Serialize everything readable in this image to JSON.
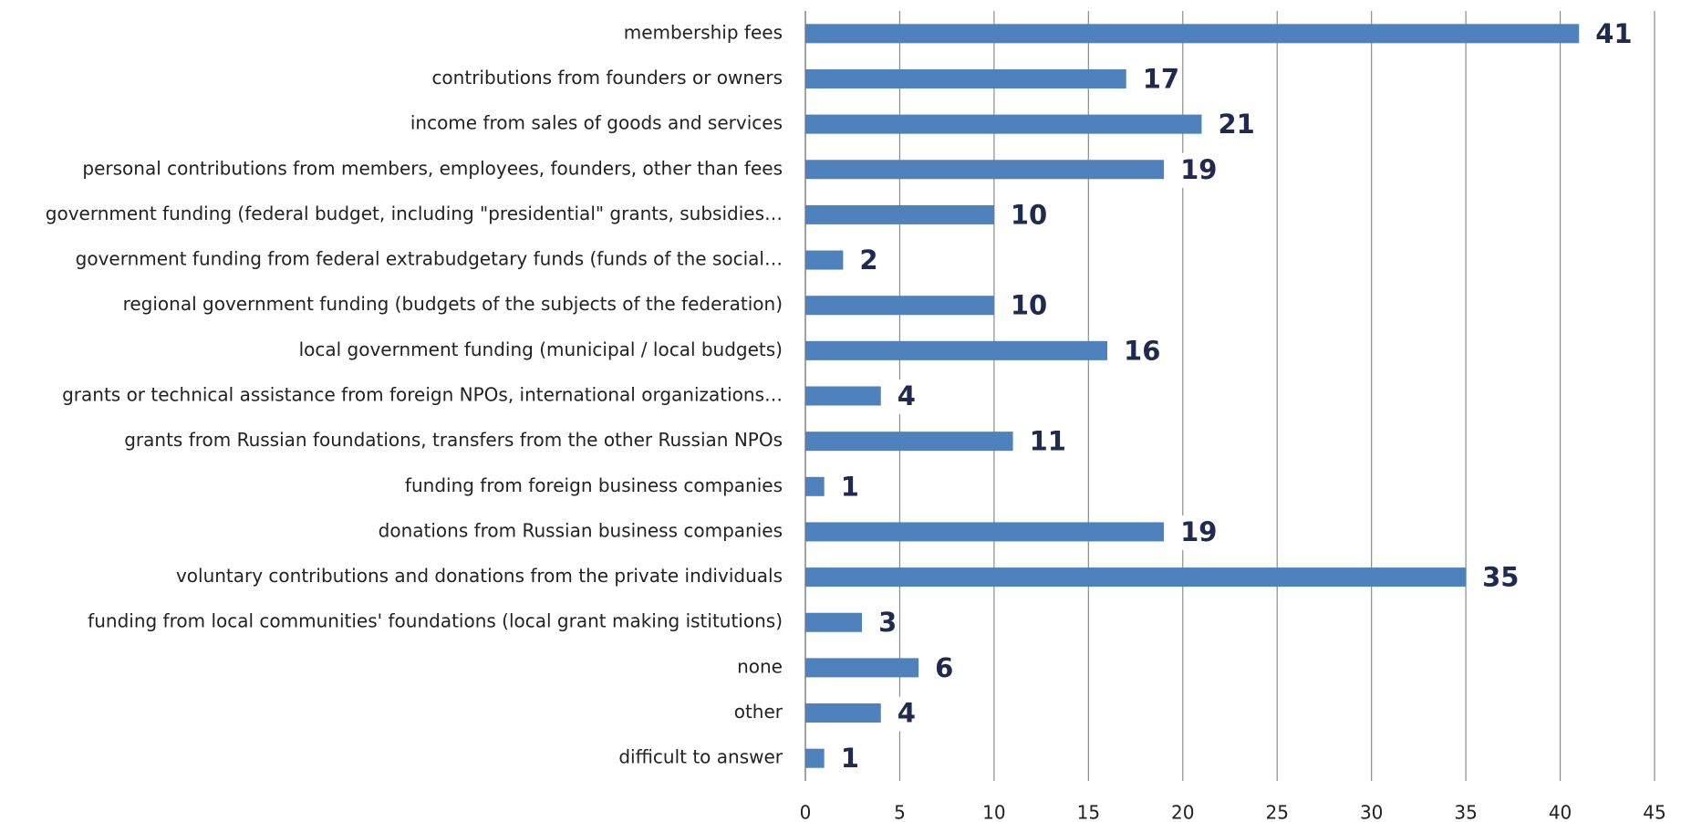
{
  "chart_data": {
    "type": "barh",
    "categories": [
      "membership fees",
      "contributions from founders or owners",
      "income from sales of goods and services",
      "personal contributions from members, employees, founders, other than fees",
      "government funding (federal budget, including \"presidential\" grants, subsidies…",
      "government funding from federal extrabudgetary funds (funds of the social…",
      "regional government funding (budgets of the subjects of the federation)",
      "local government funding (municipal / local budgets)",
      "grants or technical assistance from foreign NPOs, international organizations…",
      "grants from Russian foundations, transfers from the other Russian NPOs",
      "funding from foreign business companies",
      "donations from Russian business companies",
      "voluntary contributions and donations from the private individuals",
      "funding from local communities' foundations (local grant making istitutions)",
      "none",
      "other",
      "difficult to answer"
    ],
    "values": [
      41,
      17,
      21,
      19,
      10,
      2,
      10,
      16,
      4,
      11,
      1,
      19,
      35,
      3,
      6,
      4,
      1
    ],
    "color": "#4f81bd",
    "xlim": [
      0,
      45
    ],
    "xticks": [
      0,
      5,
      10,
      15,
      20,
      25,
      30,
      35,
      40,
      45
    ],
    "grid": true
  }
}
